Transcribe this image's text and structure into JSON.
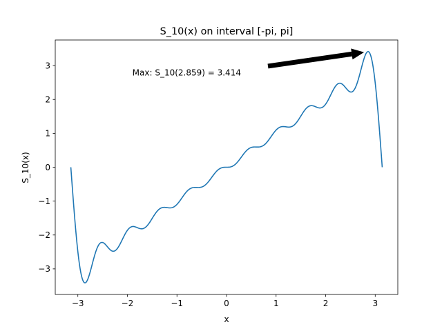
{
  "chart_data": {
    "type": "line",
    "title": "S_10(x) on interval [-pi, pi]",
    "xlabel": "x",
    "ylabel": "S_10(x)",
    "xlim": [
      -3.456,
      3.456
    ],
    "ylim": [
      -3.755,
      3.755
    ],
    "xticks": [
      -3,
      -2,
      -1,
      0,
      1,
      2,
      3
    ],
    "xtick_labels": [
      "−3",
      "−2",
      "−1",
      "0",
      "1",
      "2",
      "3"
    ],
    "yticks": [
      -3,
      -2,
      -1,
      0,
      1,
      2,
      3
    ],
    "ytick_labels": [
      "−3",
      "−2",
      "−1",
      "0",
      "1",
      "2",
      "3"
    ],
    "grid": false,
    "series": [
      {
        "function": "S_10(x) = sum_{k=1..10} 2*(-1)^(k+1)*sin(k*x)/k",
        "x_range": [
          -3.14159,
          3.14159
        ],
        "n_points": 600,
        "color": "#1f77b4"
      }
    ],
    "annotation": {
      "text": "Max: S_10(2.859) = 3.414",
      "point": [
        2.859,
        3.414
      ],
      "text_position": [
        -1.9,
        2.8
      ]
    }
  }
}
